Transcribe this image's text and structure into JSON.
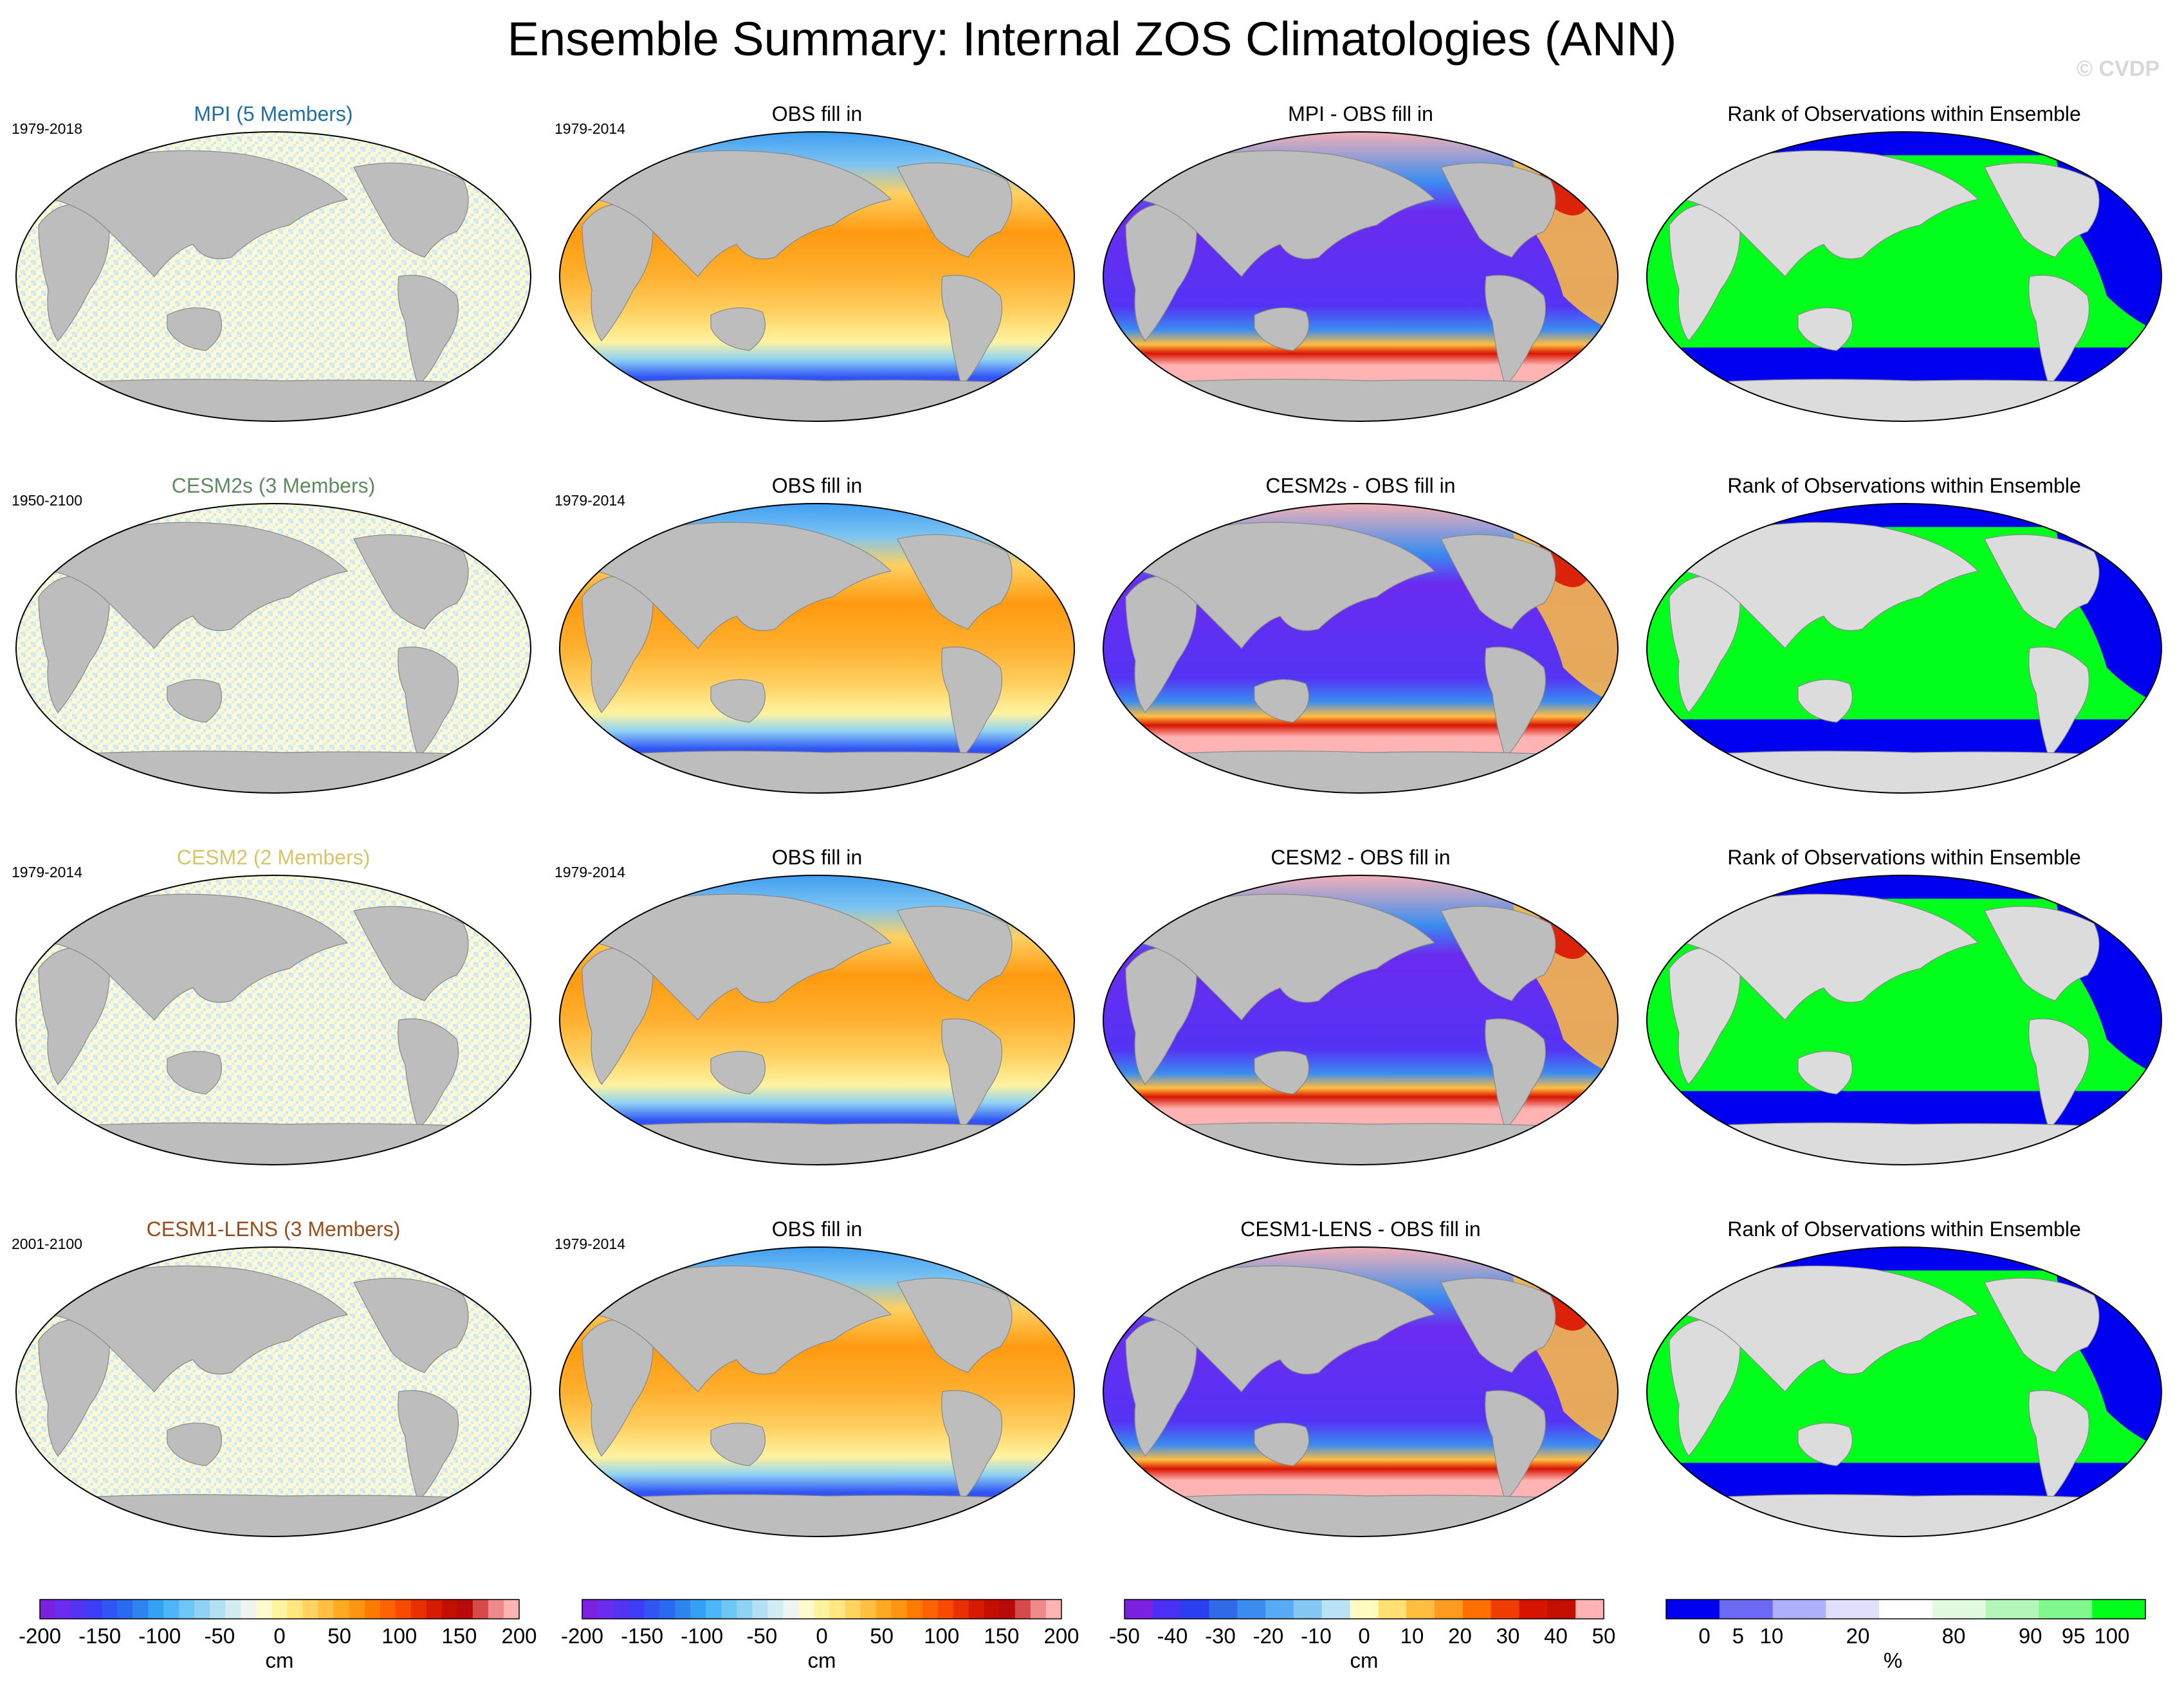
{
  "title": "Ensemble Summary: Internal ZOS Climatologies (ANN)",
  "watermark": "© CVDP",
  "colors": {
    "land": "#bdbdbd",
    "land_rank": "#dcdcdc",
    "rank_green": "#00ff1a",
    "rank_blue": "#0000f0",
    "diff_pink": "#ffb3b3",
    "member_mpi": "#1f6fa0",
    "member_cesm2s": "#5f8a5f",
    "member_cesm2": "#d6c46a",
    "member_cesm1": "#9a4d1a"
  },
  "rows": [
    {
      "ensemble_title": "MPI (5 Members)",
      "ensemble_color": "#1f6fa0",
      "ensemble_years": "1979-2018",
      "obs_title": "OBS fill in",
      "obs_years": "1979-2014",
      "diff_title": "MPI - OBS fill in",
      "rank_title": "Rank of Observations within Ensemble"
    },
    {
      "ensemble_title": "CESM2s (3 Members)",
      "ensemble_color": "#5f8a5f",
      "ensemble_years": "1950-2100",
      "obs_title": "OBS fill in",
      "obs_years": "1979-2014",
      "diff_title": "CESM2s - OBS fill in",
      "rank_title": "Rank of Observations within Ensemble"
    },
    {
      "ensemble_title": "CESM2 (2 Members)",
      "ensemble_color": "#d6c46a",
      "ensemble_years": "1979-2014",
      "obs_title": "OBS fill in",
      "obs_years": "1979-2014",
      "diff_title": "CESM2 - OBS fill in",
      "rank_title": "Rank of Observations within Ensemble"
    },
    {
      "ensemble_title": "CESM1-LENS (3 Members)",
      "ensemble_color": "#9a4d1a",
      "ensemble_years": "2001-2100",
      "obs_title": "OBS fill in",
      "obs_years": "1979-2014",
      "diff_title": "CESM1-LENS - OBS fill in",
      "rank_title": "Rank of Observations within Ensemble"
    }
  ],
  "colorbars": [
    {
      "name": "ensemble-colorbar",
      "unit": "cm",
      "labels": [
        "-200",
        "-150",
        "-100",
        "-50",
        "0",
        "50",
        "100",
        "150",
        "200"
      ],
      "colors": [
        "#7b1fe0",
        "#6a2cf0",
        "#5533f5",
        "#3d3df8",
        "#2f55f5",
        "#2a6af0",
        "#2e85f0",
        "#35a0f5",
        "#4db6f8",
        "#6cc6f6",
        "#8fd3f4",
        "#b3e0f3",
        "#d3ecf2",
        "#eef5f0",
        "#fffbd0",
        "#fff3a0",
        "#ffe680",
        "#ffd360",
        "#ffbf40",
        "#ffaa20",
        "#ff9510",
        "#ff7b00",
        "#ff6200",
        "#f84a00",
        "#ea3000",
        "#d81a00",
        "#c40e00",
        "#b80a0a",
        "#d84a4a",
        "#f08a8a",
        "#ffb3b3"
      ]
    },
    {
      "name": "obs-colorbar",
      "unit": "cm",
      "labels": [
        "-200",
        "-150",
        "-100",
        "-50",
        "0",
        "50",
        "100",
        "150",
        "200"
      ],
      "colors": [
        "#7b1fe0",
        "#6a2cf0",
        "#5533f5",
        "#3d3df8",
        "#2f55f5",
        "#2a6af0",
        "#2e85f0",
        "#35a0f5",
        "#4db6f8",
        "#6cc6f6",
        "#8fd3f4",
        "#b3e0f3",
        "#d3ecf2",
        "#eef5f0",
        "#fffbd0",
        "#fff3a0",
        "#ffe680",
        "#ffd360",
        "#ffbf40",
        "#ffaa20",
        "#ff9510",
        "#ff7b00",
        "#ff6200",
        "#f84a00",
        "#ea3000",
        "#d81a00",
        "#c40e00",
        "#b80a0a",
        "#d84a4a",
        "#f08a8a",
        "#ffb3b3"
      ]
    },
    {
      "name": "diff-colorbar",
      "unit": "cm",
      "labels": [
        "-50",
        "-40",
        "-30",
        "-20",
        "-10",
        "0",
        "10",
        "20",
        "30",
        "40",
        "50"
      ],
      "colors": [
        "#7b1fe0",
        "#4a2ff5",
        "#2a40f0",
        "#2f6ae8",
        "#3a8cf0",
        "#57aaf5",
        "#86c8f5",
        "#b9e2f5",
        "#fffbc0",
        "#ffe070",
        "#ffbe40",
        "#ff9a20",
        "#ff7000",
        "#f03c00",
        "#d81400",
        "#c40e00",
        "#ffb3b3"
      ]
    },
    {
      "name": "rank-colorbar",
      "unit": "%",
      "labels": [
        "0",
        "5",
        "10",
        "20",
        "80",
        "90",
        "95",
        "100"
      ],
      "colors": [
        "#0000f0",
        "#6a6af5",
        "#afafff",
        "#e0e0fb",
        "#ffffff",
        "#e0fbe0",
        "#b3f7b8",
        "#80f78a",
        "#00ff1a"
      ]
    }
  ]
}
